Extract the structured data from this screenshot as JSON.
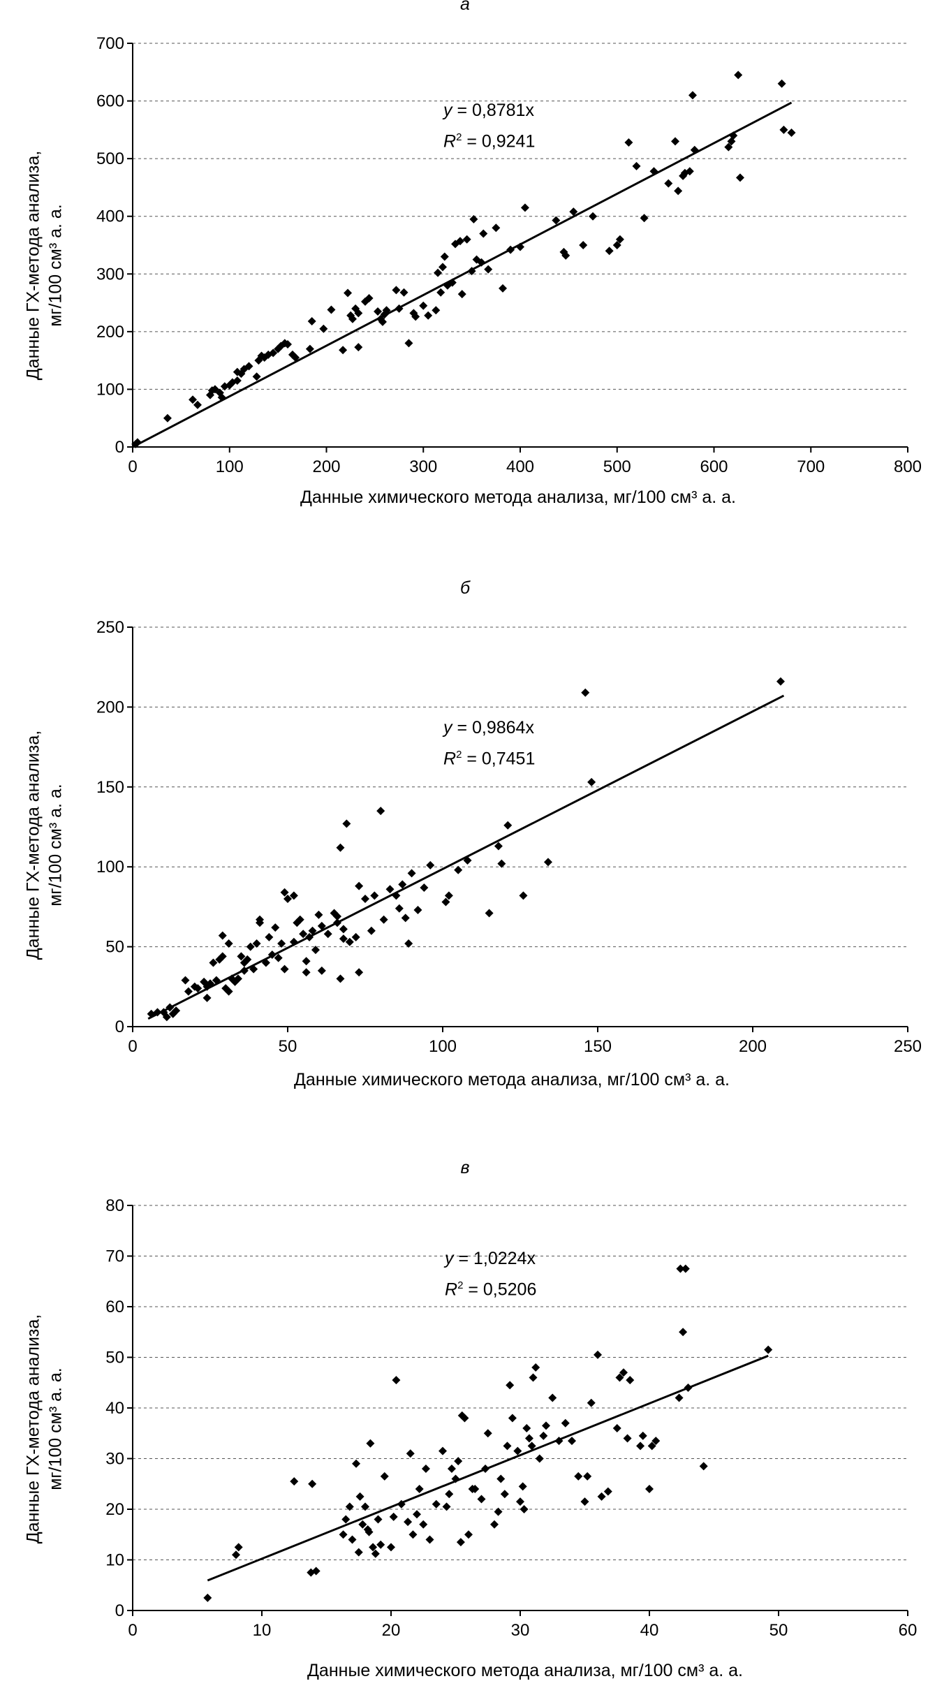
{
  "chart_data": [
    {
      "type": "scatter",
      "panel_label": "а",
      "xlabel": "Данные химического метода анализа, мг/100 см³ а. а.",
      "ylabel": [
        "Данные ГХ-метода анализа,",
        "мг/100 см³ а. а."
      ],
      "xlim": [
        0,
        800
      ],
      "ylim": [
        0,
        700
      ],
      "xticks": [
        "0",
        "100",
        "200",
        "300",
        "400",
        "500",
        "600",
        "700",
        "800"
      ],
      "yticks": [
        "0",
        "100",
        "200",
        "300",
        "400",
        "500",
        "600",
        "700"
      ],
      "grid": "horizontal-dashed",
      "trendline": {
        "slope": 0.8781,
        "x_range": [
          0,
          680
        ],
        "equation_var": "y",
        "equation_value": " = 0,8781x",
        "r2_value": " = 0,9241"
      },
      "points": [
        [
          3,
          5
        ],
        [
          5,
          8
        ],
        [
          36,
          50
        ],
        [
          62,
          82
        ],
        [
          67,
          73
        ],
        [
          80,
          90
        ],
        [
          82,
          98
        ],
        [
          85,
          100
        ],
        [
          90,
          94
        ],
        [
          92,
          86
        ],
        [
          95,
          105
        ],
        [
          100,
          107
        ],
        [
          103,
          112
        ],
        [
          108,
          115
        ],
        [
          108,
          130
        ],
        [
          112,
          127
        ],
        [
          115,
          135
        ],
        [
          120,
          140
        ],
        [
          128,
          122
        ],
        [
          130,
          150
        ],
        [
          133,
          158
        ],
        [
          136,
          155
        ],
        [
          140,
          160
        ],
        [
          145,
          163
        ],
        [
          150,
          170
        ],
        [
          153,
          175
        ],
        [
          157,
          180
        ],
        [
          160,
          178
        ],
        [
          165,
          160
        ],
        [
          168,
          155
        ],
        [
          183,
          170
        ],
        [
          185,
          218
        ],
        [
          197,
          205
        ],
        [
          205,
          238
        ],
        [
          217,
          168
        ],
        [
          222,
          267
        ],
        [
          225,
          228
        ],
        [
          227,
          222
        ],
        [
          230,
          240
        ],
        [
          233,
          232
        ],
        [
          233,
          173
        ],
        [
          240,
          252
        ],
        [
          244,
          258
        ],
        [
          253,
          235
        ],
        [
          256,
          222
        ],
        [
          258,
          217
        ],
        [
          260,
          230
        ],
        [
          262,
          237
        ],
        [
          272,
          272
        ],
        [
          275,
          240
        ],
        [
          280,
          268
        ],
        [
          285,
          180
        ],
        [
          290,
          232
        ],
        [
          292,
          226
        ],
        [
          300,
          245
        ],
        [
          305,
          228
        ],
        [
          313,
          237
        ],
        [
          315,
          302
        ],
        [
          318,
          268
        ],
        [
          320,
          312
        ],
        [
          322,
          330
        ],
        [
          325,
          280
        ],
        [
          330,
          285
        ],
        [
          333,
          352
        ],
        [
          338,
          357
        ],
        [
          340,
          265
        ],
        [
          345,
          360
        ],
        [
          350,
          305
        ],
        [
          352,
          395
        ],
        [
          355,
          325
        ],
        [
          360,
          320
        ],
        [
          362,
          370
        ],
        [
          367,
          308
        ],
        [
          375,
          380
        ],
        [
          382,
          275
        ],
        [
          390,
          342
        ],
        [
          400,
          347
        ],
        [
          405,
          415
        ],
        [
          437,
          393
        ],
        [
          445,
          338
        ],
        [
          447,
          332
        ],
        [
          455,
          408
        ],
        [
          465,
          350
        ],
        [
          475,
          400
        ],
        [
          492,
          340
        ],
        [
          500,
          350
        ],
        [
          503,
          360
        ],
        [
          512,
          528
        ],
        [
          520,
          487
        ],
        [
          528,
          397
        ],
        [
          538,
          478
        ],
        [
          553,
          457
        ],
        [
          560,
          530
        ],
        [
          563,
          444
        ],
        [
          568,
          470
        ],
        [
          570,
          475
        ],
        [
          575,
          478
        ],
        [
          578,
          610
        ],
        [
          580,
          515
        ],
        [
          615,
          520
        ],
        [
          618,
          530
        ],
        [
          620,
          540
        ],
        [
          625,
          645
        ],
        [
          627,
          467
        ],
        [
          670,
          630
        ],
        [
          672,
          550
        ],
        [
          680,
          545
        ]
      ]
    },
    {
      "type": "scatter",
      "panel_label": "б",
      "xlabel": "Данные химического метода анализа, мг/100 см³ а. а.",
      "ylabel": [
        "Данные ГХ-метода анализа,",
        "мг/100 см³ а. а."
      ],
      "xlim": [
        0,
        250
      ],
      "ylim": [
        0,
        250
      ],
      "xticks": [
        "0",
        "50",
        "100",
        "150",
        "200",
        "250"
      ],
      "yticks": [
        "0",
        "50",
        "100",
        "150",
        "200",
        "250"
      ],
      "grid": "horizontal-dashed",
      "trendline": {
        "slope": 0.9864,
        "x_range": [
          5,
          210
        ],
        "equation_var": "y",
        "equation_value": " = 0,9864x",
        "r2_value": " = 0,7451"
      },
      "points": [
        [
          6,
          8
        ],
        [
          8,
          9
        ],
        [
          10,
          9
        ],
        [
          11,
          6
        ],
        [
          12,
          12
        ],
        [
          13,
          8
        ],
        [
          14,
          10
        ],
        [
          17,
          29
        ],
        [
          18,
          22
        ],
        [
          20,
          25
        ],
        [
          21,
          24
        ],
        [
          23,
          28
        ],
        [
          24,
          18
        ],
        [
          24,
          25
        ],
        [
          25,
          27
        ],
        [
          26,
          40
        ],
        [
          27,
          29
        ],
        [
          28,
          42
        ],
        [
          29,
          44
        ],
        [
          29,
          57
        ],
        [
          30,
          24
        ],
        [
          31,
          22
        ],
        [
          31,
          52
        ],
        [
          32,
          30
        ],
        [
          33,
          28
        ],
        [
          34,
          30
        ],
        [
          35,
          44
        ],
        [
          36,
          35
        ],
        [
          36,
          40
        ],
        [
          37,
          42
        ],
        [
          38,
          50
        ],
        [
          39,
          36
        ],
        [
          40,
          52
        ],
        [
          41,
          67
        ],
        [
          41,
          65
        ],
        [
          43,
          40
        ],
        [
          44,
          56
        ],
        [
          45,
          45
        ],
        [
          46,
          62
        ],
        [
          47,
          43
        ],
        [
          48,
          52
        ],
        [
          49,
          36
        ],
        [
          49,
          84
        ],
        [
          50,
          80
        ],
        [
          52,
          53
        ],
        [
          52,
          82
        ],
        [
          53,
          65
        ],
        [
          54,
          67
        ],
        [
          55,
          58
        ],
        [
          56,
          41
        ],
        [
          56,
          34
        ],
        [
          57,
          56
        ],
        [
          58,
          60
        ],
        [
          59,
          48
        ],
        [
          60,
          70
        ],
        [
          61,
          35
        ],
        [
          61,
          63
        ],
        [
          63,
          58
        ],
        [
          65,
          71
        ],
        [
          66,
          69
        ],
        [
          66,
          65
        ],
        [
          67,
          30
        ],
        [
          67,
          112
        ],
        [
          68,
          61
        ],
        [
          68,
          55
        ],
        [
          69,
          127
        ],
        [
          70,
          53
        ],
        [
          72,
          56
        ],
        [
          73,
          34
        ],
        [
          73,
          88
        ],
        [
          75,
          80
        ],
        [
          77,
          60
        ],
        [
          78,
          82
        ],
        [
          80,
          135
        ],
        [
          81,
          67
        ],
        [
          83,
          86
        ],
        [
          85,
          82
        ],
        [
          86,
          74
        ],
        [
          87,
          89
        ],
        [
          88,
          68
        ],
        [
          89,
          52
        ],
        [
          90,
          96
        ],
        [
          92,
          73
        ],
        [
          94,
          87
        ],
        [
          96,
          101
        ],
        [
          101,
          78
        ],
        [
          102,
          82
        ],
        [
          105,
          98
        ],
        [
          108,
          104
        ],
        [
          115,
          71
        ],
        [
          118,
          113
        ],
        [
          119,
          102
        ],
        [
          121,
          126
        ],
        [
          126,
          82
        ],
        [
          134,
          103
        ],
        [
          146,
          209
        ],
        [
          148,
          153
        ],
        [
          209,
          216
        ]
      ]
    },
    {
      "type": "scatter",
      "panel_label": "в",
      "xlabel": "Данные химического метода анализа, мг/100 см³ а. а.",
      "ylabel": [
        "Данные ГХ-метода анализа,",
        "мг/100 см³ а. а."
      ],
      "xlim": [
        0,
        60
      ],
      "ylim": [
        0,
        80
      ],
      "xticks": [
        "0",
        "10",
        "20",
        "30",
        "40",
        "50",
        "60"
      ],
      "yticks": [
        "0",
        "10",
        "20",
        "30",
        "40",
        "50",
        "60",
        "70",
        "80"
      ],
      "grid": "horizontal-dashed",
      "trendline": {
        "slope": 1.0224,
        "x_range": [
          5.8,
          49.2
        ],
        "equation_var": "y",
        "equation_value": " = 1,0224x",
        "r2_value": " = 0,5206"
      },
      "points": [
        [
          5.8,
          2.5
        ],
        [
          8,
          11
        ],
        [
          8.2,
          12.5
        ],
        [
          12.5,
          25.5
        ],
        [
          13.8,
          7.5
        ],
        [
          14.2,
          7.8
        ],
        [
          13.9,
          25
        ],
        [
          16.3,
          15
        ],
        [
          16.5,
          18
        ],
        [
          16.8,
          20.5
        ],
        [
          17,
          14
        ],
        [
          17.3,
          29
        ],
        [
          17.5,
          11.5
        ],
        [
          17.6,
          22.5
        ],
        [
          17.8,
          17
        ],
        [
          18,
          20.5
        ],
        [
          18.2,
          16
        ],
        [
          18.3,
          15.5
        ],
        [
          18.4,
          33
        ],
        [
          18.6,
          12.5
        ],
        [
          18.8,
          11.2
        ],
        [
          19,
          18
        ],
        [
          19.2,
          13
        ],
        [
          19.5,
          26.5
        ],
        [
          20,
          12.5
        ],
        [
          20.2,
          18.5
        ],
        [
          20.4,
          45.5
        ],
        [
          20.8,
          21
        ],
        [
          21.3,
          17.5
        ],
        [
          21.5,
          31
        ],
        [
          21.7,
          15
        ],
        [
          22,
          19
        ],
        [
          22.2,
          24
        ],
        [
          22.5,
          17
        ],
        [
          22.7,
          28
        ],
        [
          23,
          14
        ],
        [
          23.5,
          21
        ],
        [
          24,
          31.5
        ],
        [
          24.3,
          20.5
        ],
        [
          24.5,
          23
        ],
        [
          24.7,
          28
        ],
        [
          25,
          26
        ],
        [
          25.2,
          29.5
        ],
        [
          25.4,
          13.5
        ],
        [
          25.5,
          38.5
        ],
        [
          25.7,
          38
        ],
        [
          26,
          15
        ],
        [
          26.3,
          24
        ],
        [
          26.5,
          24
        ],
        [
          27,
          22
        ],
        [
          27.3,
          28
        ],
        [
          27.5,
          35
        ],
        [
          28,
          17
        ],
        [
          28.3,
          19.5
        ],
        [
          28.5,
          26
        ],
        [
          28.8,
          23
        ],
        [
          29,
          32.5
        ],
        [
          29.2,
          44.5
        ],
        [
          29.4,
          38
        ],
        [
          29.8,
          31.5
        ],
        [
          30,
          21.5
        ],
        [
          30.2,
          24.5
        ],
        [
          30.3,
          20
        ],
        [
          30.5,
          36
        ],
        [
          30.7,
          34
        ],
        [
          30.9,
          32.5
        ],
        [
          31,
          46
        ],
        [
          31.2,
          48
        ],
        [
          31.5,
          30
        ],
        [
          31.8,
          34.5
        ],
        [
          32,
          36.5
        ],
        [
          32.5,
          42
        ],
        [
          33,
          33.5
        ],
        [
          33.5,
          37
        ],
        [
          34,
          33.5
        ],
        [
          34.5,
          26.5
        ],
        [
          35,
          21.5
        ],
        [
          35.2,
          26.5
        ],
        [
          35.5,
          41
        ],
        [
          36,
          50.5
        ],
        [
          36.3,
          22.5
        ],
        [
          36.8,
          23.5
        ],
        [
          37.5,
          36
        ],
        [
          37.7,
          46
        ],
        [
          38,
          47
        ],
        [
          38.3,
          34
        ],
        [
          38.5,
          45.5
        ],
        [
          39.3,
          32.5
        ],
        [
          39.5,
          34.5
        ],
        [
          40,
          24
        ],
        [
          40.2,
          32.5
        ],
        [
          40.5,
          33.5
        ],
        [
          42.3,
          42
        ],
        [
          42.4,
          67.5
        ],
        [
          42.6,
          55
        ],
        [
          42.8,
          67.5
        ],
        [
          43,
          44
        ],
        [
          44.2,
          28.5
        ],
        [
          49.2,
          51.5
        ]
      ]
    }
  ]
}
